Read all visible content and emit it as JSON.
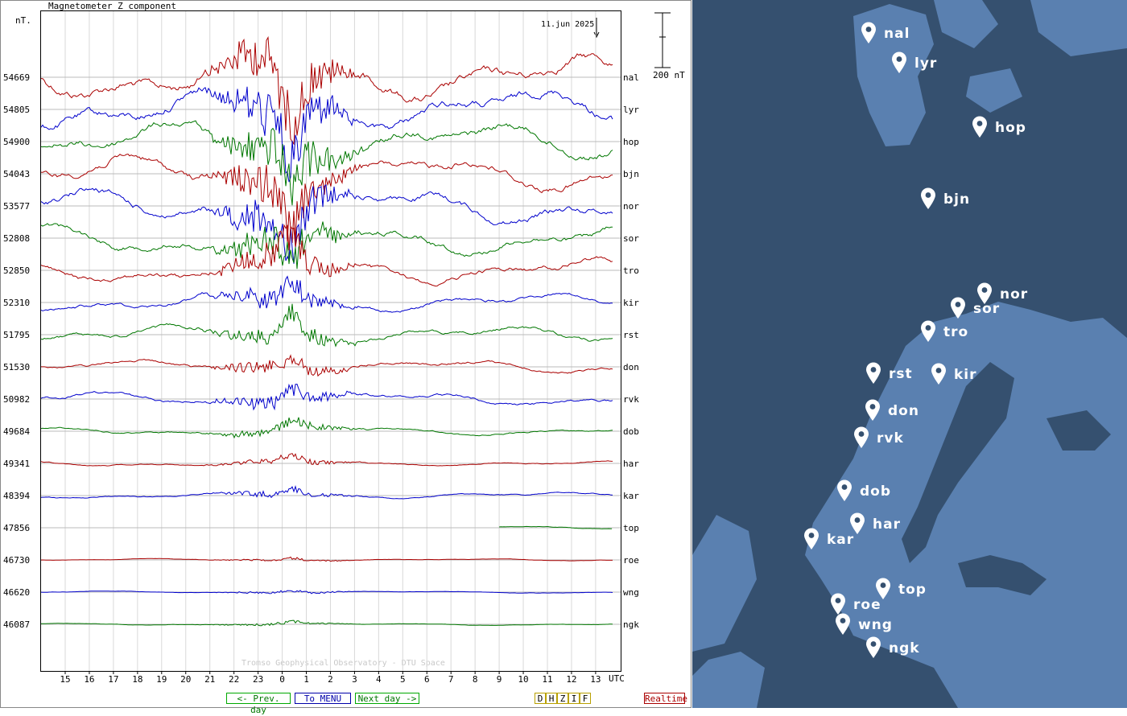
{
  "title": "Magnetometer Z component",
  "y_unit": "nT.",
  "date_label": "11.jun 2025",
  "scale_label": "200 nT",
  "watermark": "Tromso Geophysical Observatory - DTU Space",
  "x_unit_label": "UTC",
  "buttons": {
    "prev_day": "<- Prev. day",
    "menu": "To MENU",
    "next_day": "Next day ->",
    "components": [
      "D",
      "H",
      "Z",
      "I",
      "F"
    ],
    "realtime": "Realtime"
  },
  "colors": {
    "red": "#aa0000",
    "blue": "#0000cc",
    "green": "#007700",
    "map_sea": "#35506f",
    "map_land": "#5a80b0"
  },
  "chart_data": {
    "type": "line",
    "title": "Magnetometer Z component",
    "xlabel": "UTC",
    "ylabel": "nT.",
    "x_ticks": [
      "15",
      "16",
      "17",
      "18",
      "19",
      "20",
      "21",
      "22",
      "23",
      "0",
      "1",
      "2",
      "3",
      "4",
      "5",
      "6",
      "7",
      "8",
      "9",
      "10",
      "11",
      "12",
      "13"
    ],
    "scale_bar_nT": 200,
    "grid": true,
    "series": [
      {
        "station": "nal",
        "baseline": "54669",
        "color": "red",
        "activity": 3.0
      },
      {
        "station": "lyr",
        "baseline": "54805",
        "color": "blue",
        "activity": 2.9
      },
      {
        "station": "hop",
        "baseline": "54900",
        "color": "green",
        "activity": 2.6
      },
      {
        "station": "bjn",
        "baseline": "54043",
        "color": "red",
        "activity": 2.4
      },
      {
        "station": "nor",
        "baseline": "53577",
        "color": "blue",
        "activity": 2.3
      },
      {
        "station": "sor",
        "baseline": "52808",
        "color": "green",
        "activity": 2.0
      },
      {
        "station": "tro",
        "baseline": "52850",
        "color": "red",
        "activity": 1.7
      },
      {
        "station": "kir",
        "baseline": "52310",
        "color": "blue",
        "activity": 1.2
      },
      {
        "station": "rst",
        "baseline": "51795",
        "color": "green",
        "activity": 1.2
      },
      {
        "station": "don",
        "baseline": "51530",
        "color": "red",
        "activity": 0.9
      },
      {
        "station": "rvk",
        "baseline": "50982",
        "color": "blue",
        "activity": 0.9
      },
      {
        "station": "dob",
        "baseline": "49684",
        "color": "green",
        "activity": 0.55
      },
      {
        "station": "har",
        "baseline": "49341",
        "color": "red",
        "activity": 0.35
      },
      {
        "station": "kar",
        "baseline": "48394",
        "color": "blue",
        "activity": 0.4
      },
      {
        "station": "top",
        "baseline": "47856",
        "color": "green",
        "activity": 0.2,
        "partial_start_tick": "9"
      },
      {
        "station": "roe",
        "baseline": "46730",
        "color": "red",
        "activity": 0.15
      },
      {
        "station": "wng",
        "baseline": "46620",
        "color": "blue",
        "activity": 0.15
      },
      {
        "station": "ngk",
        "baseline": "46087",
        "color": "green",
        "activity": 0.15
      }
    ]
  },
  "map": {
    "stations": [
      "nal",
      "lyr",
      "hop",
      "bjn",
      "nor",
      "sor",
      "tro",
      "rst",
      "kir",
      "don",
      "rvk",
      "dob",
      "har",
      "kar",
      "top",
      "roe",
      "wng",
      "ngk"
    ]
  }
}
